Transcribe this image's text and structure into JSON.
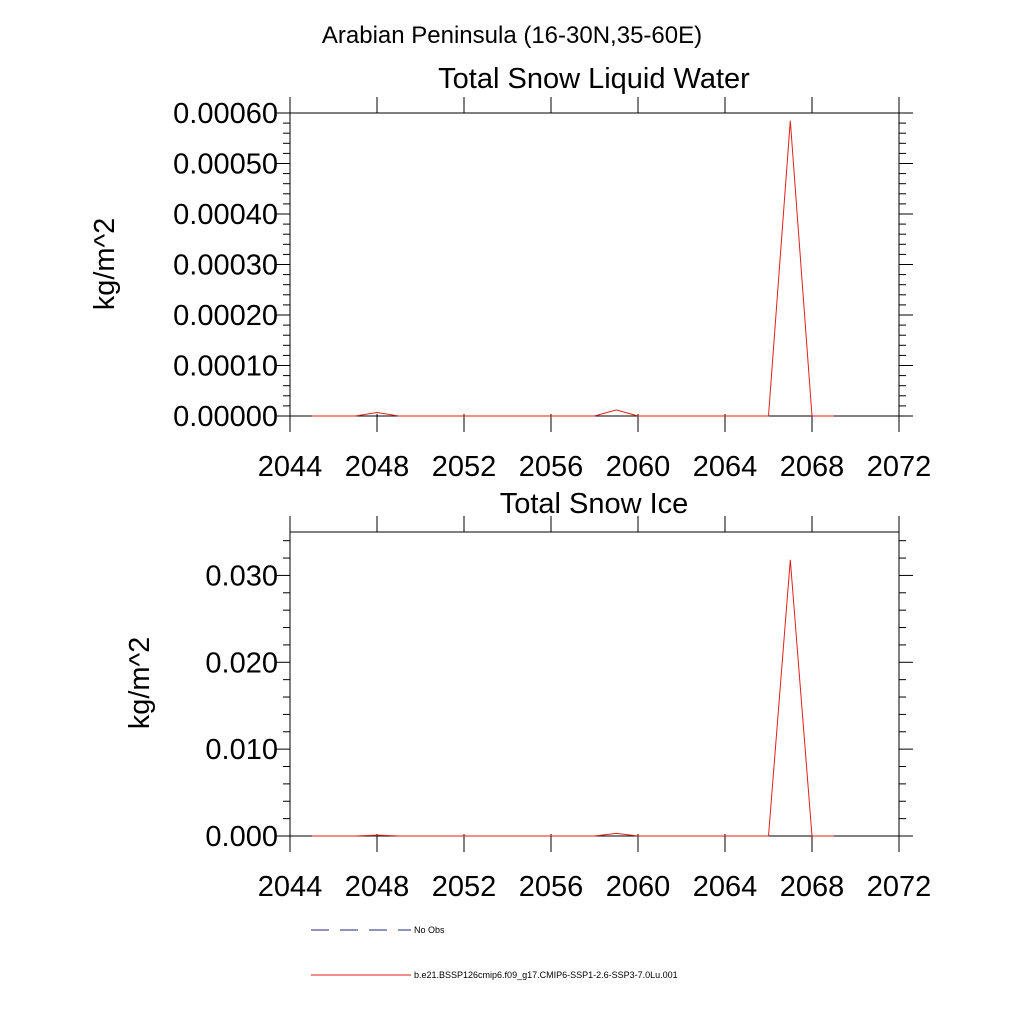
{
  "figure_title": "Arabian Peninsula (16-30N,35-60E)",
  "legend": [
    {
      "label": "No Obs",
      "color": "#1f2a7a",
      "dash": true
    },
    {
      "label": "b.e21.BSSP126cmip6.f09_g17.CMIP6-SSP1-2.6-SSP3-7.0Lu.001",
      "color": "#e0201b",
      "dash": false
    }
  ],
  "chart_data": [
    {
      "type": "line",
      "title": "Total Snow Liquid Water",
      "xlabel": "",
      "ylabel": "kg/m^2",
      "xlim": [
        2044,
        2072
      ],
      "ylim": [
        0,
        0.0006
      ],
      "xticks": [
        2044,
        2048,
        2052,
        2056,
        2060,
        2064,
        2068,
        2072
      ],
      "xtick_labels": [
        "2044",
        "2048",
        "2052",
        "2056",
        "2060",
        "2064",
        "2068",
        "2072"
      ],
      "yticks": [
        0,
        0.0001,
        0.0002,
        0.0003,
        0.0004,
        0.0005,
        0.0006
      ],
      "ytick_labels": [
        "0.00000",
        "0.00010",
        "0.00020",
        "0.00030",
        "0.00040",
        "0.00050",
        "0.00060"
      ],
      "grid": false,
      "series": [
        {
          "name": "b.e21.BSSP126cmip6.f09_g17.CMIP6-SSP1-2.6-SSP3-7.0Lu.001",
          "color": "#e0201b",
          "x": [
            2045,
            2046,
            2047,
            2048,
            2049,
            2050,
            2051,
            2052,
            2053,
            2054,
            2055,
            2056,
            2057,
            2058,
            2059,
            2060,
            2061,
            2062,
            2063,
            2064,
            2065,
            2066,
            2067,
            2068,
            2069
          ],
          "y": [
            0,
            0,
            0,
            7e-06,
            0,
            0,
            0,
            0,
            0,
            0,
            0,
            0,
            0,
            0,
            1.2e-05,
            0,
            0,
            0,
            0,
            0,
            0,
            0,
            0.000585,
            0,
            0
          ]
        }
      ]
    },
    {
      "type": "line",
      "title": "Total Snow Ice",
      "xlabel": "",
      "ylabel": "kg/m^2",
      "xlim": [
        2044,
        2072
      ],
      "ylim": [
        0,
        0.035
      ],
      "xticks": [
        2044,
        2048,
        2052,
        2056,
        2060,
        2064,
        2068,
        2072
      ],
      "xtick_labels": [
        "2044",
        "2048",
        "2052",
        "2056",
        "2060",
        "2064",
        "2068",
        "2072"
      ],
      "yticks": [
        0,
        0.01,
        0.02,
        0.03
      ],
      "ytick_labels": [
        "0.000",
        "0.010",
        "0.020",
        "0.030"
      ],
      "grid": false,
      "series": [
        {
          "name": "b.e21.BSSP126cmip6.f09_g17.CMIP6-SSP1-2.6-SSP3-7.0Lu.001",
          "color": "#e0201b",
          "x": [
            2045,
            2046,
            2047,
            2048,
            2049,
            2050,
            2051,
            2052,
            2053,
            2054,
            2055,
            2056,
            2057,
            2058,
            2059,
            2060,
            2061,
            2062,
            2063,
            2064,
            2065,
            2066,
            2067,
            2068,
            2069
          ],
          "y": [
            0,
            0,
            0,
            0.0001,
            0,
            0,
            0,
            0,
            0,
            0,
            0,
            0,
            0,
            0,
            0.0003,
            0,
            0,
            0,
            0,
            0,
            0,
            0,
            0.0318,
            0,
            0
          ]
        }
      ]
    }
  ]
}
